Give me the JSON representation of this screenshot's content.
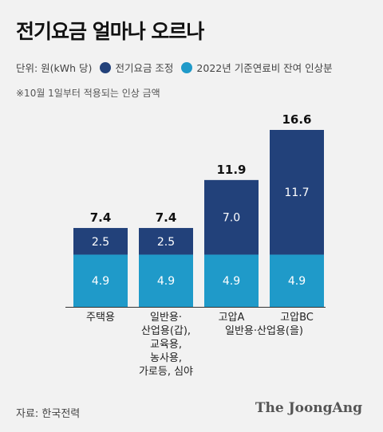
{
  "title": "전기요금 얼마나 오르나",
  "legend": {
    "unit": "단위: 원(kWh 당)",
    "adjust_label": "전기요금 조정",
    "fuel_label": "2022년 기준연료비 잔여 인상분"
  },
  "note": "※10월 1일부터 적용되는 인상 금액",
  "source": "자료: 한국전력",
  "logo": "The JoongAng",
  "colors": {
    "adjust": "#22417a",
    "fuel": "#1f9ac9",
    "axis": "#333333"
  },
  "chart_data": {
    "type": "bar",
    "stacked": true,
    "categories": [
      [
        "주택용"
      ],
      [
        "일반용·",
        "산업용(갑),",
        "교육용,",
        "농사용,",
        "가로등, 심야"
      ],
      [
        "고압A"
      ],
      [
        "고압BC"
      ]
    ],
    "group_label": "일반용·산업용(을)",
    "series": [
      {
        "name": "2022년 기준연료비 잔여 인상분",
        "values": [
          4.9,
          4.9,
          4.9,
          4.9
        ]
      },
      {
        "name": "전기요금 조정",
        "values": [
          2.5,
          2.5,
          7.0,
          11.7
        ]
      }
    ],
    "value_labels": [
      [
        "4.9",
        "4.9",
        "4.9",
        "4.9"
      ],
      [
        "2.5",
        "2.5",
        "7.0",
        "11.7"
      ]
    ],
    "totals": [
      "7.4",
      "7.4",
      "11.9",
      "16.6"
    ],
    "ylim": [
      0,
      16.6
    ]
  }
}
